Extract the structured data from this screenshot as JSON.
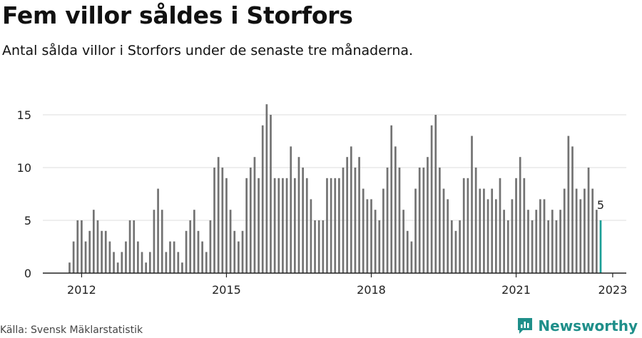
{
  "title": "Fem villor såldes i Storfors",
  "subtitle": "Antal sålda villor i Storfors under de senaste tre månaderna.",
  "source": "Källa: Svensk Mäklarstatistik",
  "brand": "Newsworthy",
  "colors": {
    "bar": "#737373",
    "highlight": "#1a9e96",
    "grid": "#dddddd",
    "axis": "#222222",
    "brand": "#1f8f8a"
  },
  "chart_data": {
    "type": "bar",
    "start": "2011-10",
    "x_ticks": [
      "2012",
      "2015",
      "2018",
      "2021",
      "2023"
    ],
    "y_ticks": [
      0,
      5,
      10,
      15
    ],
    "ylim": [
      0,
      17
    ],
    "grid": true,
    "annotation": "5",
    "values": [
      1,
      3,
      5,
      5,
      3,
      4,
      6,
      5,
      4,
      4,
      3,
      2,
      1,
      2,
      3,
      5,
      5,
      3,
      2,
      1,
      2,
      6,
      8,
      6,
      2,
      3,
      3,
      2,
      1,
      4,
      5,
      6,
      4,
      3,
      2,
      5,
      10,
      11,
      10,
      9,
      6,
      4,
      3,
      4,
      9,
      10,
      11,
      9,
      14,
      16,
      15,
      9,
      9,
      9,
      9,
      12,
      9,
      11,
      10,
      9,
      7,
      5,
      5,
      5,
      9,
      9,
      9,
      9,
      10,
      11,
      12,
      10,
      11,
      8,
      7,
      7,
      6,
      5,
      8,
      10,
      14,
      12,
      10,
      6,
      4,
      3,
      8,
      10,
      10,
      11,
      14,
      15,
      10,
      8,
      7,
      5,
      4,
      5,
      9,
      9,
      13,
      10,
      8,
      8,
      7,
      8,
      7,
      9,
      6,
      5,
      7,
      9,
      11,
      9,
      6,
      5,
      6,
      7,
      7,
      5,
      6,
      5,
      6,
      8,
      13,
      12,
      8,
      7,
      8,
      10,
      8,
      6,
      5
    ]
  }
}
